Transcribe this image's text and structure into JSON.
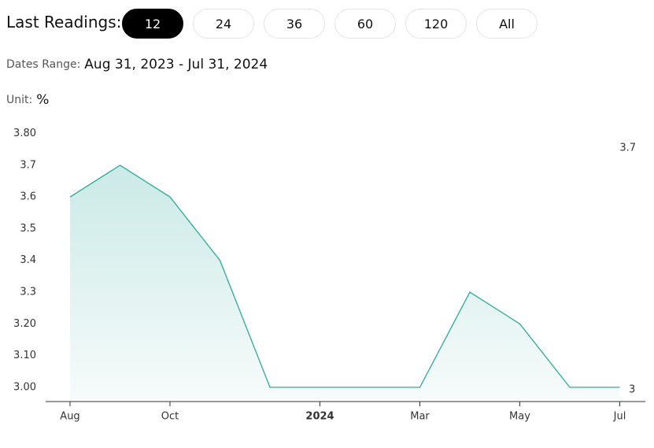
{
  "header": {
    "readings_label": "Last Readings:",
    "options": [
      "12",
      "24",
      "36",
      "60",
      "120",
      "All"
    ],
    "dates_label": "Dates Range:",
    "dates_value": "Aug 31, 2023 - Jul 31, 2024",
    "unit_label": "Unit:",
    "unit_value": "%"
  },
  "chart_data": {
    "type": "area",
    "color": "#2ba99b",
    "categories": [
      "Aug",
      null,
      "Oct",
      null,
      null,
      "2024",
      null,
      "Mar",
      null,
      "May",
      null,
      "Jul"
    ],
    "values": [
      3.6,
      3.7,
      3.6,
      3.4,
      3.0,
      3.0,
      3.0,
      3.0,
      3.3,
      3.2,
      3.0,
      3.0
    ],
    "ylim": [
      2.955,
      3.8
    ],
    "yticks": [
      {
        "value": 3.0,
        "label": "3.00"
      },
      {
        "value": 3.1,
        "label": "3.10"
      },
      {
        "value": 3.2,
        "label": "3.20"
      },
      3.3,
      3.4,
      3.5,
      3.6,
      3.7,
      {
        "value": 3.8,
        "label": "3.80"
      }
    ]
  }
}
